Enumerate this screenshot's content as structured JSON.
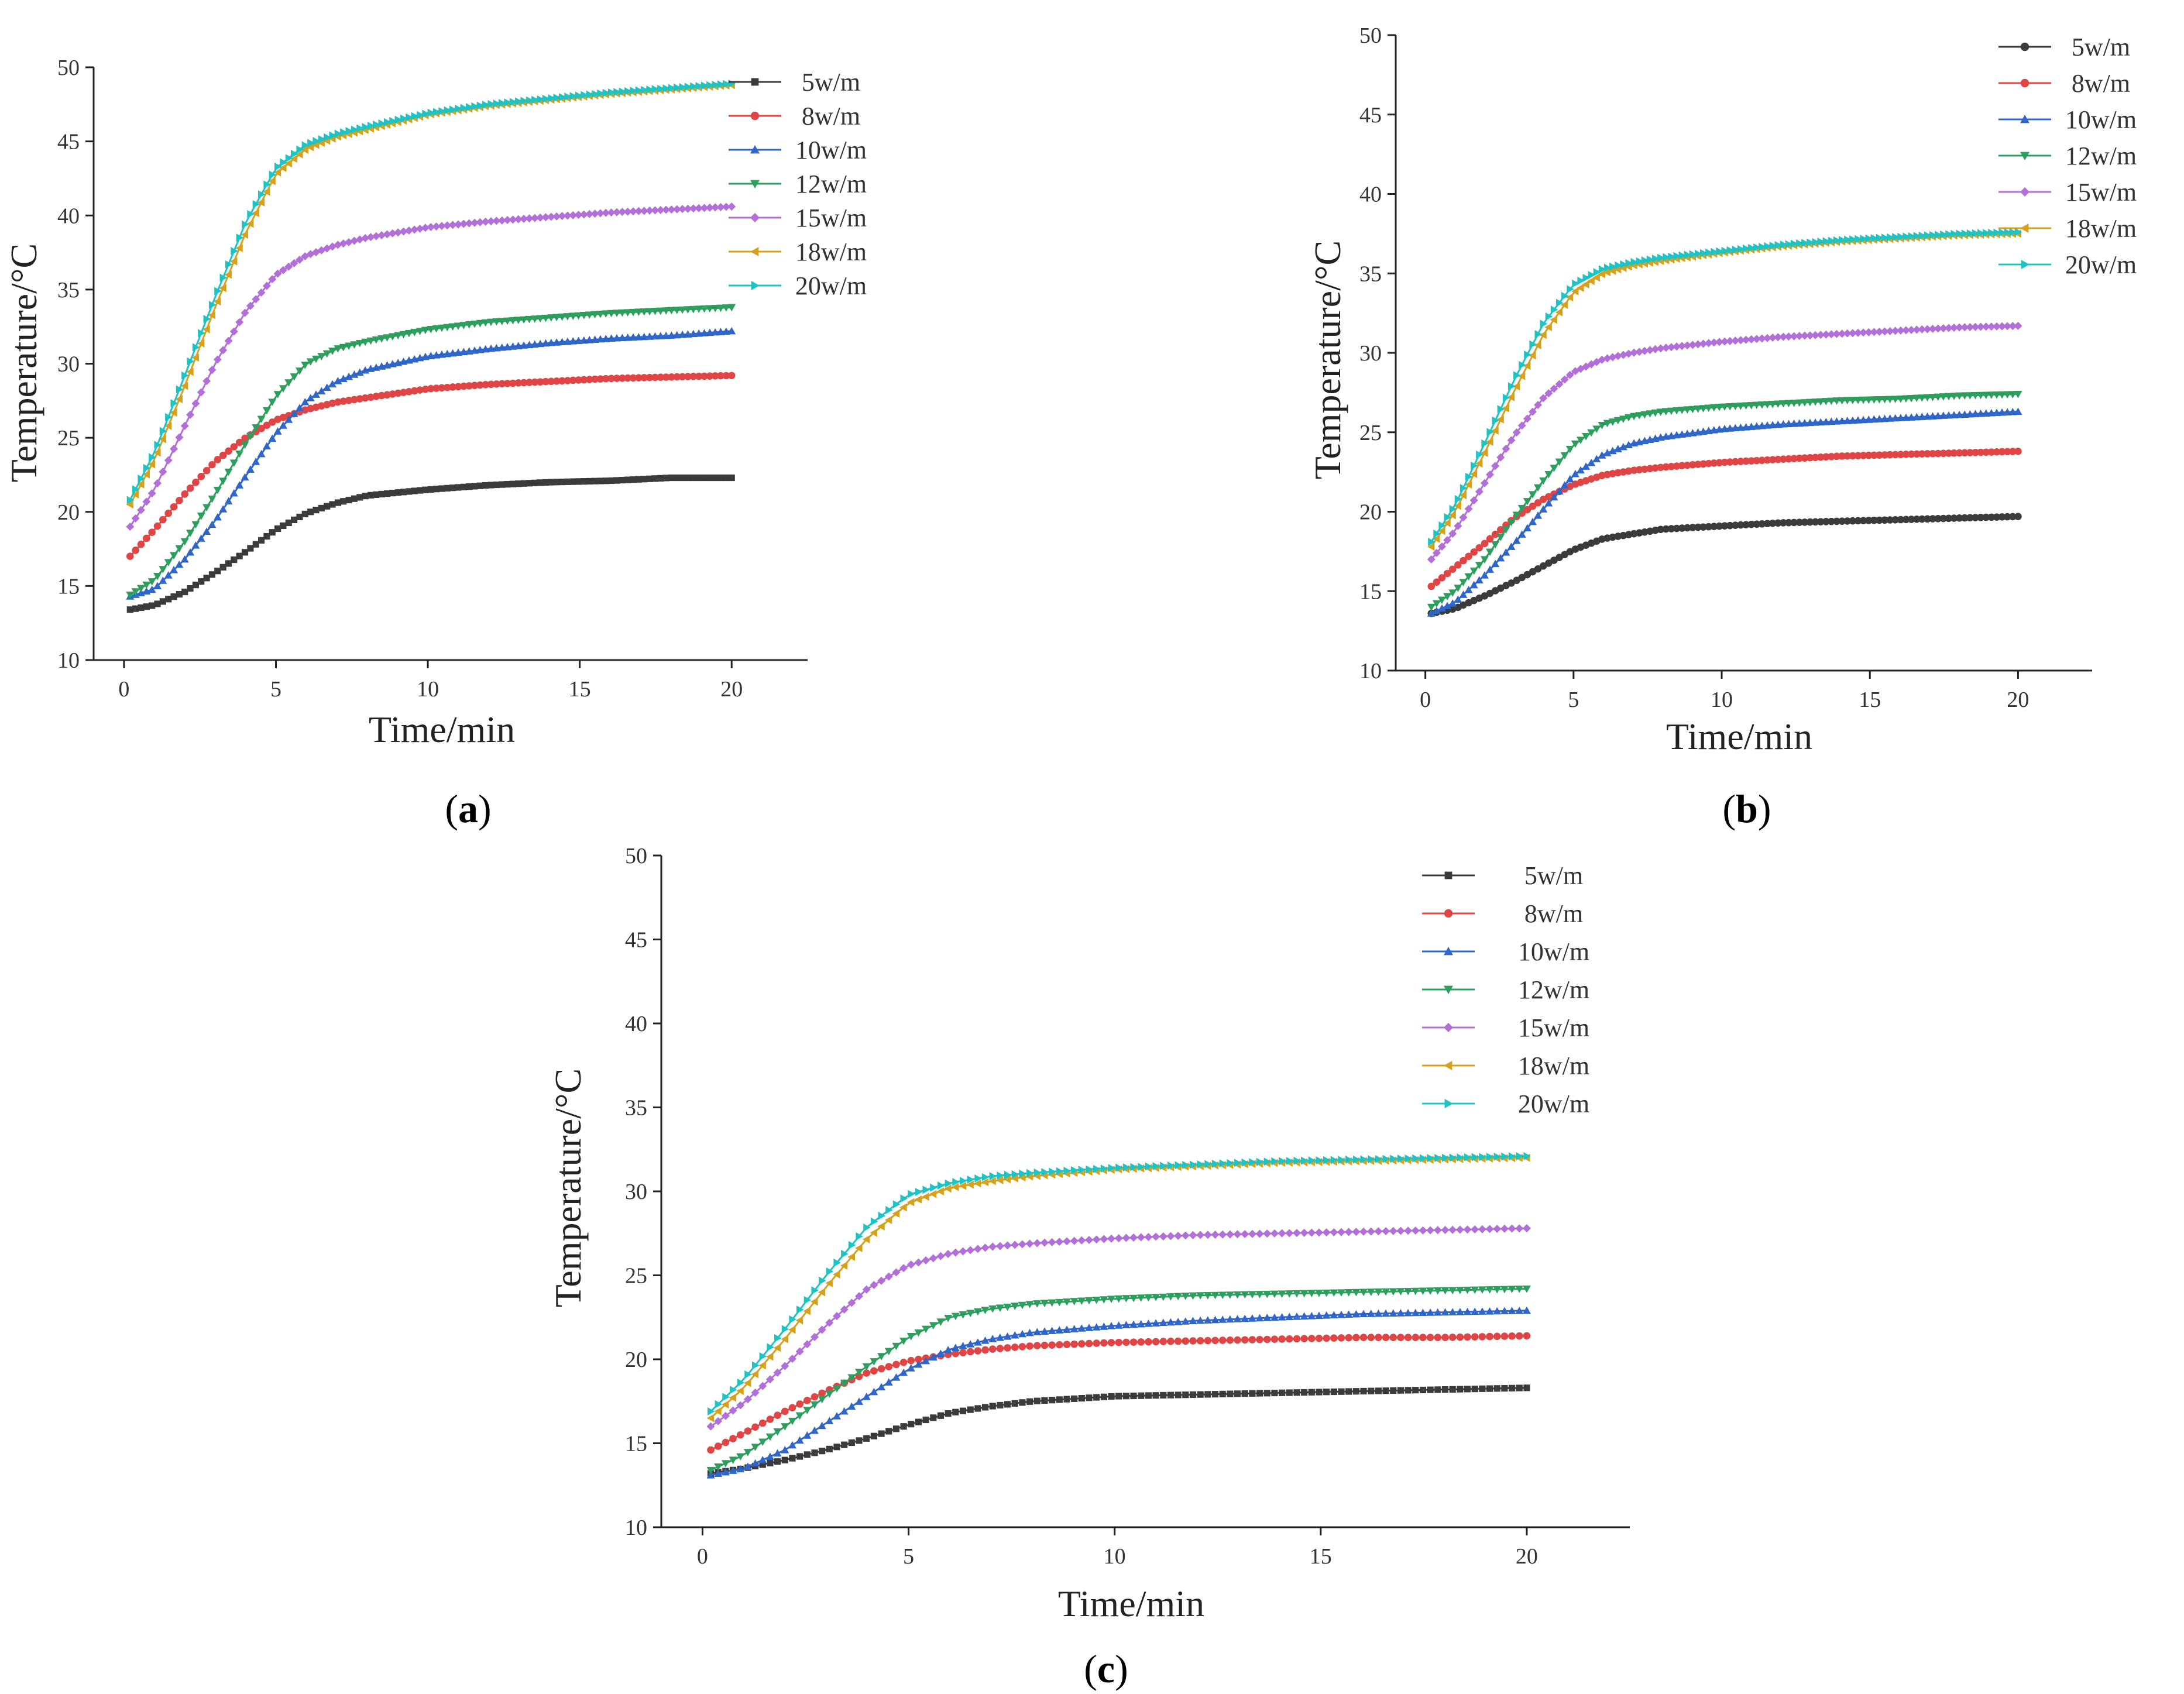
{
  "chart_data": [
    {
      "id": "a",
      "type": "line",
      "caption": {
        "open": "(",
        "letter": "a",
        "close": ")"
      },
      "title": "",
      "xlabel": "Time/min",
      "ylabel": "Temperature/°C",
      "xlim": [
        -1,
        22.5
      ],
      "ylim": [
        10,
        50
      ],
      "xticks": [
        0,
        5,
        10,
        15,
        20
      ],
      "yticks": [
        10,
        15,
        20,
        25,
        30,
        35,
        40,
        45,
        50
      ],
      "grid": false,
      "legend_position": "top-right",
      "series": [
        {
          "name": "5w/m",
          "color": "#3b3b3b",
          "marker": "square",
          "x": [
            0.2,
            1,
            2,
            3,
            4,
            5,
            6,
            7,
            8,
            10,
            12,
            14,
            16,
            18,
            20
          ],
          "y": [
            13.4,
            13.7,
            14.6,
            15.9,
            17.3,
            18.8,
            19.9,
            20.6,
            21.1,
            21.5,
            21.8,
            22.0,
            22.1,
            22.3,
            22.3
          ]
        },
        {
          "name": "8w/m",
          "color": "#e04545",
          "marker": "circle",
          "x": [
            0.2,
            1,
            2,
            3,
            4,
            5,
            6,
            7,
            8,
            10,
            12,
            14,
            16,
            18,
            20
          ],
          "y": [
            17.0,
            18.8,
            21.2,
            23.4,
            25.0,
            26.2,
            26.9,
            27.4,
            27.7,
            28.3,
            28.6,
            28.8,
            29.0,
            29.1,
            29.2
          ]
        },
        {
          "name": "10w/m",
          "color": "#2f66c8",
          "marker": "triangle-up",
          "x": [
            0.2,
            1,
            2,
            3,
            4,
            5,
            6,
            7,
            8,
            10,
            12,
            14,
            16,
            18,
            20
          ],
          "y": [
            14.3,
            14.8,
            16.8,
            19.4,
            22.4,
            25.3,
            27.5,
            28.8,
            29.6,
            30.5,
            31.0,
            31.4,
            31.7,
            31.9,
            32.2
          ]
        },
        {
          "name": "12w/m",
          "color": "#2e9e5e",
          "marker": "triangle-down",
          "x": [
            0.2,
            1,
            2,
            3,
            4,
            5,
            6,
            7,
            8,
            10,
            12,
            14,
            16,
            18,
            20
          ],
          "y": [
            14.4,
            15.4,
            18.0,
            21.2,
            24.6,
            27.8,
            30.0,
            31.0,
            31.5,
            32.3,
            32.8,
            33.1,
            33.4,
            33.6,
            33.8
          ]
        },
        {
          "name": "15w/m",
          "color": "#b26fd8",
          "marker": "diamond",
          "x": [
            0.2,
            1,
            2,
            3,
            4,
            5,
            6,
            7,
            8,
            10,
            12,
            14,
            16,
            18,
            20
          ],
          "y": [
            19.0,
            21.5,
            25.8,
            30.0,
            33.5,
            36.0,
            37.3,
            38.0,
            38.5,
            39.2,
            39.6,
            39.9,
            40.2,
            40.4,
            40.6
          ]
        },
        {
          "name": "18w/m",
          "color": "#d6a21e",
          "marker": "triangle-left",
          "x": [
            0.2,
            1,
            2,
            3,
            4,
            5,
            6,
            7,
            8,
            10,
            12,
            14,
            16,
            18,
            20
          ],
          "y": [
            20.5,
            23.5,
            28.5,
            33.8,
            38.8,
            42.8,
            44.5,
            45.3,
            45.8,
            46.8,
            47.4,
            47.8,
            48.2,
            48.5,
            48.8
          ]
        },
        {
          "name": "20w/m",
          "color": "#20c3c3",
          "marker": "triangle-right",
          "x": [
            0.2,
            1,
            2,
            3,
            4,
            5,
            6,
            7,
            8,
            10,
            12,
            14,
            16,
            18,
            20
          ],
          "y": [
            20.8,
            24.0,
            29.2,
            34.5,
            39.5,
            43.2,
            44.8,
            45.5,
            46.0,
            46.9,
            47.5,
            47.9,
            48.3,
            48.6,
            48.9
          ]
        }
      ]
    },
    {
      "id": "b",
      "type": "line",
      "caption": {
        "open": "(",
        "letter": "b",
        "close": ")"
      },
      "title": "",
      "xlabel": "Time/min",
      "ylabel": "Temperature/°C",
      "xlim": [
        -1,
        22.5
      ],
      "ylim": [
        10,
        50
      ],
      "xticks": [
        0,
        5,
        10,
        15,
        20
      ],
      "yticks": [
        10,
        15,
        20,
        25,
        30,
        35,
        40,
        45,
        50
      ],
      "grid": false,
      "legend_position": "top-right",
      "series": [
        {
          "name": "5w/m",
          "color": "#3b3b3b",
          "marker": "circle",
          "x": [
            0.2,
            1,
            2,
            3,
            4,
            5,
            6,
            7,
            8,
            10,
            12,
            14,
            16,
            18,
            20
          ],
          "y": [
            13.6,
            13.9,
            14.7,
            15.6,
            16.6,
            17.6,
            18.3,
            18.6,
            18.9,
            19.1,
            19.3,
            19.4,
            19.5,
            19.6,
            19.7
          ]
        },
        {
          "name": "8w/m",
          "color": "#e04545",
          "marker": "circle",
          "x": [
            0.2,
            1,
            2,
            3,
            4,
            5,
            6,
            7,
            8,
            10,
            12,
            14,
            16,
            18,
            20
          ],
          "y": [
            15.3,
            16.5,
            18.0,
            19.6,
            20.8,
            21.7,
            22.3,
            22.6,
            22.8,
            23.1,
            23.3,
            23.5,
            23.6,
            23.7,
            23.8
          ]
        },
        {
          "name": "10w/m",
          "color": "#2f66c8",
          "marker": "triangle-up",
          "x": [
            0.2,
            1,
            2,
            3,
            4,
            5,
            6,
            7,
            8,
            10,
            12,
            14,
            16,
            18,
            20
          ],
          "y": [
            13.6,
            14.3,
            16.0,
            18.0,
            20.2,
            22.3,
            23.6,
            24.3,
            24.7,
            25.2,
            25.5,
            25.7,
            25.9,
            26.1,
            26.3
          ]
        },
        {
          "name": "12w/m",
          "color": "#2e9e5e",
          "marker": "triangle-down",
          "x": [
            0.2,
            1,
            2,
            3,
            4,
            5,
            6,
            7,
            8,
            10,
            12,
            14,
            16,
            18,
            20
          ],
          "y": [
            14.0,
            15.0,
            17.0,
            19.6,
            22.0,
            24.2,
            25.5,
            26.0,
            26.3,
            26.6,
            26.8,
            27.0,
            27.1,
            27.3,
            27.4
          ]
        },
        {
          "name": "15w/m",
          "color": "#b26fd8",
          "marker": "diamond",
          "x": [
            0.2,
            1,
            2,
            3,
            4,
            5,
            6,
            7,
            8,
            10,
            12,
            14,
            16,
            18,
            20
          ],
          "y": [
            17.0,
            18.8,
            21.8,
            24.8,
            27.2,
            28.8,
            29.6,
            30.0,
            30.3,
            30.7,
            31.0,
            31.2,
            31.4,
            31.6,
            31.7
          ]
        },
        {
          "name": "18w/m",
          "color": "#d6a21e",
          "marker": "triangle-left",
          "x": [
            0.2,
            1,
            2,
            3,
            4,
            5,
            6,
            7,
            8,
            10,
            12,
            14,
            16,
            18,
            20
          ],
          "y": [
            17.8,
            20.0,
            23.7,
            27.6,
            31.2,
            33.8,
            35.0,
            35.5,
            35.8,
            36.3,
            36.7,
            37.0,
            37.2,
            37.4,
            37.5
          ]
        },
        {
          "name": "20w/m",
          "color": "#20c3c3",
          "marker": "triangle-right",
          "x": [
            0.2,
            1,
            2,
            3,
            4,
            5,
            6,
            7,
            8,
            10,
            12,
            14,
            16,
            18,
            20
          ],
          "y": [
            18.1,
            20.4,
            24.3,
            28.3,
            31.9,
            34.3,
            35.3,
            35.7,
            36.0,
            36.4,
            36.8,
            37.1,
            37.3,
            37.5,
            37.6
          ]
        }
      ]
    },
    {
      "id": "c",
      "type": "line",
      "caption": {
        "open": "(",
        "letter": "c",
        "close": ")"
      },
      "title": "",
      "xlabel": "Time/min",
      "ylabel": "Temperature/°C",
      "xlim": [
        -1,
        22.5
      ],
      "ylim": [
        10,
        50
      ],
      "xticks": [
        0,
        5,
        10,
        15,
        20
      ],
      "yticks": [
        10,
        15,
        20,
        25,
        30,
        35,
        40,
        45,
        50
      ],
      "grid": false,
      "legend_position": "top-right",
      "series": [
        {
          "name": "5w/m",
          "color": "#3b3b3b",
          "marker": "square",
          "x": [
            0.2,
            1,
            2,
            3,
            4,
            5,
            6,
            7,
            8,
            10,
            12,
            14,
            16,
            18,
            20
          ],
          "y": [
            13.2,
            13.5,
            14.0,
            14.6,
            15.3,
            16.1,
            16.8,
            17.2,
            17.5,
            17.8,
            17.9,
            18.0,
            18.1,
            18.2,
            18.3
          ]
        },
        {
          "name": "8w/m",
          "color": "#e04545",
          "marker": "circle",
          "x": [
            0.2,
            1,
            2,
            3,
            4,
            5,
            6,
            7,
            8,
            10,
            12,
            14,
            16,
            18,
            20
          ],
          "y": [
            14.6,
            15.6,
            16.9,
            18.1,
            19.2,
            19.9,
            20.3,
            20.6,
            20.8,
            21.0,
            21.1,
            21.2,
            21.3,
            21.3,
            21.4
          ]
        },
        {
          "name": "10w/m",
          "color": "#2f66c8",
          "marker": "triangle-up",
          "x": [
            0.2,
            1,
            2,
            3,
            4,
            5,
            6,
            7,
            8,
            10,
            12,
            14,
            16,
            18,
            20
          ],
          "y": [
            13.1,
            13.5,
            14.6,
            16.2,
            17.8,
            19.4,
            20.6,
            21.2,
            21.6,
            22.0,
            22.3,
            22.5,
            22.7,
            22.8,
            22.9
          ]
        },
        {
          "name": "12w/m",
          "color": "#2e9e5e",
          "marker": "triangle-down",
          "x": [
            0.2,
            1,
            2,
            3,
            4,
            5,
            6,
            7,
            8,
            10,
            12,
            14,
            16,
            18,
            20
          ],
          "y": [
            13.4,
            14.3,
            16.0,
            17.8,
            19.6,
            21.3,
            22.5,
            23.0,
            23.3,
            23.6,
            23.8,
            23.9,
            24.0,
            24.1,
            24.2
          ]
        },
        {
          "name": "15w/m",
          "color": "#b26fd8",
          "marker": "diamond",
          "x": [
            0.2,
            1,
            2,
            3,
            4,
            5,
            6,
            7,
            8,
            10,
            12,
            14,
            16,
            18,
            20
          ],
          "y": [
            16.0,
            17.4,
            19.6,
            22.0,
            24.2,
            25.6,
            26.3,
            26.7,
            26.9,
            27.2,
            27.4,
            27.5,
            27.6,
            27.7,
            27.8
          ]
        },
        {
          "name": "18w/m",
          "color": "#d6a21e",
          "marker": "triangle-left",
          "x": [
            0.2,
            1,
            2,
            3,
            4,
            5,
            6,
            7,
            8,
            10,
            12,
            14,
            16,
            18,
            20
          ],
          "y": [
            16.5,
            18.3,
            21.2,
            24.3,
            27.2,
            29.3,
            30.2,
            30.6,
            30.9,
            31.3,
            31.5,
            31.7,
            31.8,
            31.9,
            32.0
          ]
        },
        {
          "name": "20w/m",
          "color": "#20c3c3",
          "marker": "triangle-right",
          "x": [
            0.2,
            1,
            2,
            3,
            4,
            5,
            6,
            7,
            8,
            10,
            12,
            14,
            16,
            18,
            20
          ],
          "y": [
            16.9,
            18.8,
            21.8,
            25.0,
            27.9,
            29.8,
            30.5,
            30.9,
            31.1,
            31.4,
            31.6,
            31.8,
            31.9,
            32.0,
            32.1
          ]
        }
      ]
    }
  ]
}
